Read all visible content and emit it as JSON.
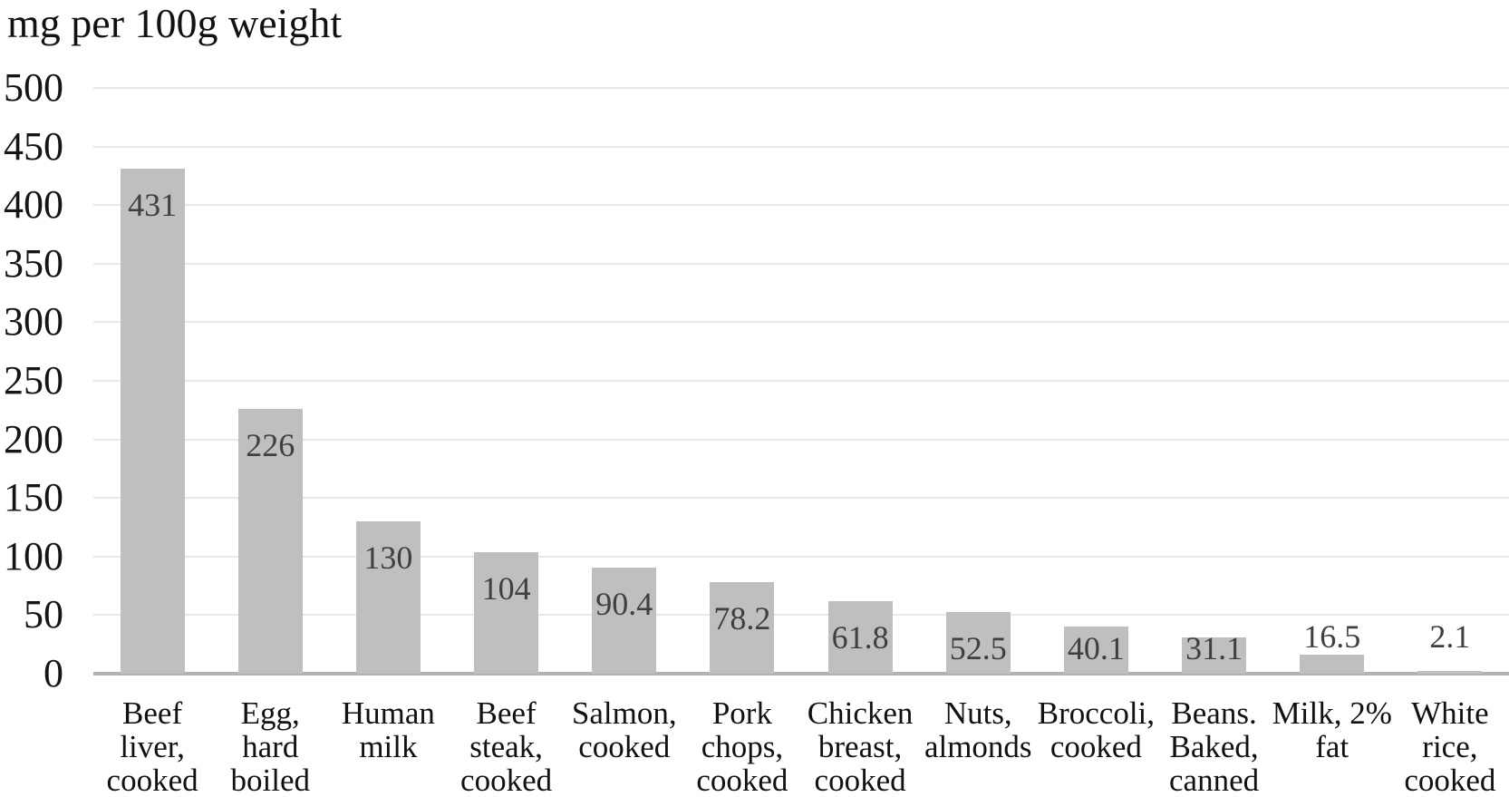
{
  "chart_data": {
    "type": "bar",
    "title": "mg per 100g weight",
    "ylabel": "mg per 100g weight",
    "xlabel": "",
    "categories": [
      "Beef liver, cooked",
      "Egg, hard boiled",
      "Human milk",
      "Beef steak, cooked",
      "Salmon, cooked",
      "Pork chops, cooked",
      "Chicken breast, cooked",
      "Nuts, almonds",
      "Broccoli, cooked",
      "Beans. Baked, canned",
      "Milk, 2% fat",
      "White rice, cooked"
    ],
    "category_lines": [
      [
        "Beef",
        "liver,",
        "cooked"
      ],
      [
        "Egg,",
        "hard",
        "boiled"
      ],
      [
        "Human",
        "milk"
      ],
      [
        "Beef",
        "steak,",
        "cooked"
      ],
      [
        "Salmon,",
        "cooked"
      ],
      [
        "Pork",
        "chops,",
        "cooked"
      ],
      [
        "Chicken",
        "breast,",
        "cooked"
      ],
      [
        "Nuts,",
        "almonds"
      ],
      [
        "Broccoli,",
        "cooked"
      ],
      [
        "Beans.",
        "Baked,",
        "canned"
      ],
      [
        "Milk, 2%",
        "fat"
      ],
      [
        "White",
        "rice,",
        "cooked"
      ]
    ],
    "values": [
      431,
      226,
      130,
      104,
      90.4,
      78.2,
      61.8,
      52.5,
      40.1,
      31.1,
      16.5,
      2.1
    ],
    "value_labels": [
      "431",
      "226",
      "130",
      "104",
      "90.4",
      "78.2",
      "61.8",
      "52.5",
      "40.1",
      "31.1",
      "16.5",
      "2.1"
    ],
    "ylim": [
      0,
      500
    ],
    "yticks": [
      0,
      50,
      100,
      150,
      200,
      250,
      300,
      350,
      400,
      450,
      500
    ],
    "grid": true,
    "legend": false,
    "colors": {
      "bar": "#bfbfbf",
      "gridline": "#e8e8e8",
      "axis_line": "#b2b2b2",
      "value_label": "#3f3f3f",
      "text": "#111111",
      "background": "#ffffff"
    }
  }
}
